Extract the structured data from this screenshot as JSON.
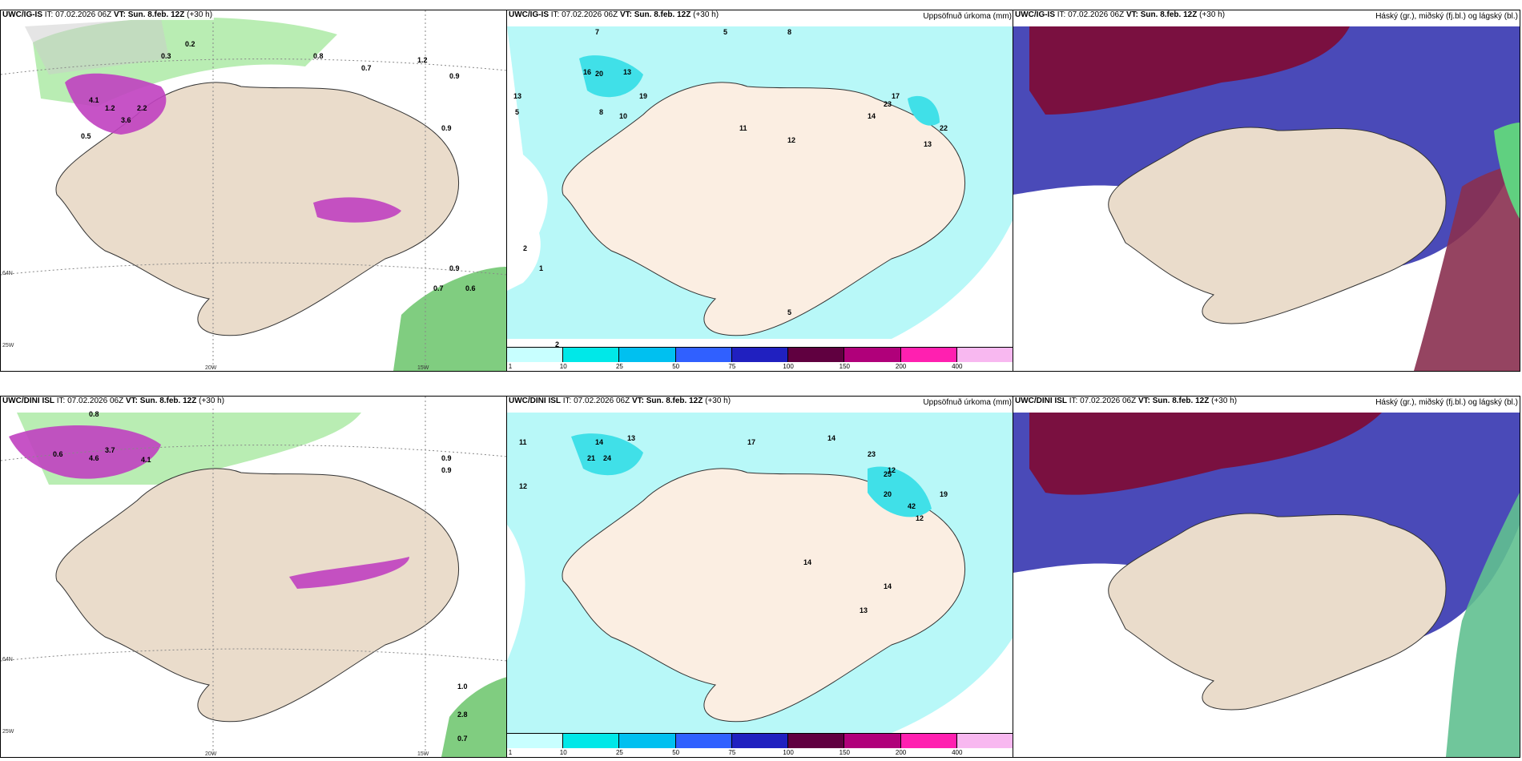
{
  "panels": [
    {
      "model": "UWC/IG-IS",
      "it": "IT: 07.02.2026 06Z",
      "vt_label": "VT:",
      "vt": "Sun. 8.feb. 12Z",
      "lead": "(+30 h)",
      "subtitle": ""
    },
    {
      "model": "UWC/IG-IS",
      "it": "IT: 07.02.2026 06Z",
      "vt_label": "VT:",
      "vt": "Sun. 8.feb. 12Z",
      "lead": "(+30 h)",
      "subtitle": "Uppsöfnuð úrkoma (mm)"
    },
    {
      "model": "UWC/IG-IS",
      "it": "IT: 07.02.2026 06Z",
      "vt_label": "VT:",
      "vt": "Sun. 8.feb. 12Z",
      "lead": "(+30 h)",
      "subtitle": "Háský (gr.), miðský (fj.bl.) og lágský (bl.)"
    },
    {
      "model": "UWC/DINI ISL",
      "it": "IT: 07.02.2026 06Z",
      "vt_label": "VT:",
      "vt": "Sun. 8.feb. 12Z",
      "lead": "(+30 h)",
      "subtitle": ""
    },
    {
      "model": "UWC/DINI ISL",
      "it": "IT: 07.02.2026 06Z",
      "vt_label": "VT:",
      "vt": "Sun. 8.feb. 12Z",
      "lead": "(+30 h)",
      "subtitle": "Uppsöfnuð úrkoma (mm)"
    },
    {
      "model": "UWC/DINI ISL",
      "it": "IT: 07.02.2026 06Z",
      "vt_label": "VT:",
      "vt": "Sun. 8.feb. 12Z",
      "lead": "(+30 h)",
      "subtitle": "Háský (gr.), miðský (fj.bl.) og lágský (bl.)"
    }
  ],
  "axis": {
    "lon20": "20W",
    "lon15": "15W",
    "lon25": "25W",
    "lat66": "66N",
    "lat64": "64N"
  },
  "colorbar": {
    "ticks": [
      "1",
      "10",
      "25",
      "50",
      "75",
      "100",
      "150",
      "200",
      "400"
    ],
    "colors": [
      "#c8ffff",
      "#00e8e8",
      "#00c0f0",
      "#3060ff",
      "#2020c0",
      "#600040",
      "#b0007a",
      "#ff20b0",
      "#f8b8f0"
    ]
  },
  "colors": {
    "land": "#eadccb",
    "precip_light": "#b8f8f8",
    "precip_mid": "#40e0e8",
    "snow": "#c040c0",
    "rain_green": "#3a9a3a",
    "cloud_high": "#7a1040",
    "cloud_mid": "#4040b0",
    "cloud_low": "#90c8f0"
  },
  "labels": {
    "p1": [
      "0.2",
      "0.3",
      "0.8",
      "0.7",
      "1.2",
      "0.9",
      "4.1",
      "1.2",
      "2.2",
      "3.6",
      "0.5",
      "0.9",
      "0.9",
      "0.7",
      "0.6"
    ],
    "p2": [
      "13",
      "7",
      "5",
      "8",
      "16",
      "20",
      "13",
      "19",
      "8",
      "10",
      "5",
      "11",
      "12",
      "17",
      "14",
      "23",
      "22",
      "13",
      "2",
      "1",
      "2",
      "5"
    ],
    "p4": [
      "0.8",
      "3.7",
      "4.6",
      "4.1",
      "0.6",
      "0.9",
      "0.9",
      "1.0",
      "2.8",
      "0.7"
    ],
    "p5": [
      "11",
      "12",
      "14",
      "21",
      "24",
      "13",
      "17",
      "14",
      "23",
      "20",
      "42",
      "25",
      "19",
      "12",
      "14",
      "13",
      "12",
      "14"
    ]
  }
}
